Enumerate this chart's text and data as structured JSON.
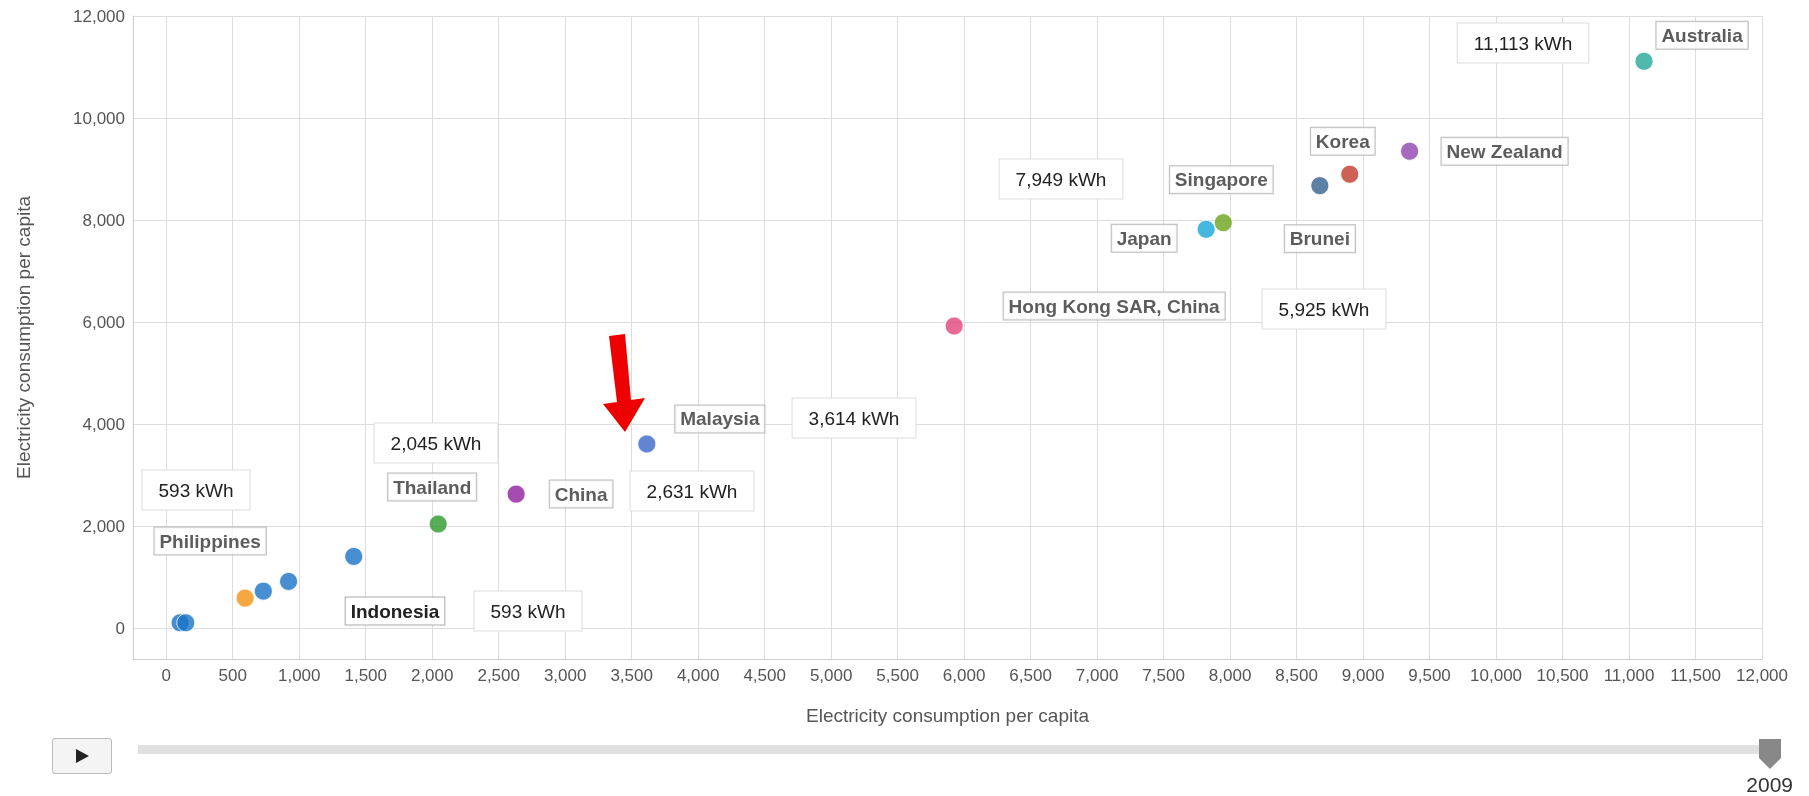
{
  "chart_data": {
    "type": "scatter",
    "xlabel": "Electricity consumption per capita",
    "ylabel": "Electricity consumption per capita",
    "xlim": [
      -250,
      12000
    ],
    "ylim": [
      -600,
      12000
    ],
    "xticks": [
      0,
      500,
      {
        "value": 1000,
        "label": "1,000"
      },
      {
        "value": 1500,
        "label": "1,500"
      },
      {
        "value": 2000,
        "label": "2,000"
      },
      {
        "value": 2500,
        "label": "2,500"
      },
      {
        "value": 3000,
        "label": "3,000"
      },
      {
        "value": 3500,
        "label": "3,500"
      },
      {
        "value": 4000,
        "label": "4,000"
      },
      {
        "value": 4500,
        "label": "4,500"
      },
      {
        "value": 5000,
        "label": "5,000"
      },
      {
        "value": 5500,
        "label": "5,500"
      },
      {
        "value": 6000,
        "label": "6,000"
      },
      {
        "value": 6500,
        "label": "6,500"
      },
      {
        "value": 7000,
        "label": "7,000"
      },
      {
        "value": 7500,
        "label": "7,500"
      },
      {
        "value": 8000,
        "label": "8,000"
      },
      {
        "value": 8500,
        "label": "8,500"
      },
      {
        "value": 9000,
        "label": "9,000"
      },
      {
        "value": 9500,
        "label": "9,500"
      },
      {
        "value": 10000,
        "label": "10,000"
      },
      {
        "value": 10500,
        "label": "10,500"
      },
      {
        "value": 11000,
        "label": "11,000"
      },
      {
        "value": 11500,
        "label": "11,500"
      },
      {
        "value": 12000,
        "label": "12,000"
      }
    ],
    "yticks": [
      0,
      {
        "value": 2000,
        "label": "2,000"
      },
      {
        "value": 4000,
        "label": "4,000"
      },
      {
        "value": 6000,
        "label": "6,000"
      },
      {
        "value": 8000,
        "label": "8,000"
      },
      {
        "value": 10000,
        "label": "10,000"
      },
      {
        "value": 12000,
        "label": "12,000"
      }
    ],
    "grid": true,
    "marker": "circle",
    "legend": false,
    "series": [
      {
        "name": "Australia",
        "color": "#26a69a",
        "x": [
          11113
        ],
        "values": [
          11113
        ]
      },
      {
        "name": "New Zealand",
        "color": "#8e44ad",
        "x": [
          9350
        ],
        "values": [
          9350
        ]
      },
      {
        "name": "Korea",
        "color": "#c0392b",
        "x": [
          8900
        ],
        "values": [
          8900
        ]
      },
      {
        "name": "Brunei",
        "color": "#34608f",
        "x": [
          8675
        ],
        "values": [
          8675
        ]
      },
      {
        "name": "Singapore",
        "color": "#6aa41a",
        "x": [
          7949
        ],
        "values": [
          7949
        ]
      },
      {
        "name": "Japan",
        "color": "#1aa5d8",
        "x": [
          7820
        ],
        "values": [
          7820
        ]
      },
      {
        "name": "Hong Kong SAR, China",
        "color": "#e0457b",
        "x": [
          5925
        ],
        "values": [
          5925
        ]
      },
      {
        "name": "Malaysia",
        "color": "#3a66c8",
        "x": [
          3614
        ],
        "values": [
          3614
        ]
      },
      {
        "name": "China",
        "color": "#8e1f9e",
        "x": [
          2631
        ],
        "values": [
          2631
        ]
      },
      {
        "name": "Thailand",
        "color": "#2e9a2e",
        "x": [
          2045
        ],
        "values": [
          2045
        ]
      },
      {
        "name": "Philippines",
        "color": "#f39212",
        "x": [
          593
        ],
        "values": [
          593
        ]
      },
      {
        "color": "#1a73c7",
        "x": [
          104,
          147,
          730,
          920,
          1410
        ],
        "values": [
          110,
          110,
          730,
          920,
          1410
        ]
      }
    ],
    "annotations": [
      "11,113 kWh",
      "7,949 kWh",
      "5,925 kWh",
      "3,614 kWh",
      "2,631 kWh",
      "2,045 kWh",
      "593 kWh",
      "Indonesia",
      "593 kWh",
      "2009"
    ]
  }
}
